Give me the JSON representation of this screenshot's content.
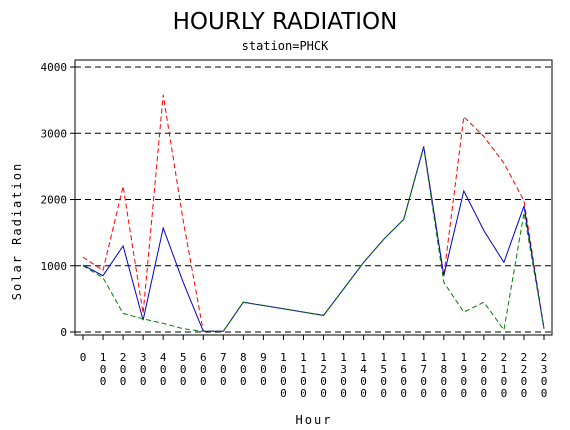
{
  "chart_data": {
    "type": "line",
    "title": "HOURLY RADIATION",
    "subtitle": "station=PHCK",
    "xlabel": "Hour",
    "ylabel": "Solar Radiation",
    "x": [
      "0",
      "100",
      "200",
      "300",
      "400",
      "500",
      "600",
      "700",
      "800",
      "900",
      "1000",
      "1100",
      "1200",
      "1300",
      "1400",
      "1500",
      "1600",
      "1700",
      "1800",
      "1900",
      "2000",
      "2100",
      "2200",
      "2300"
    ],
    "ylim": [
      0,
      4000
    ],
    "yticks": [
      0,
      1000,
      2000,
      3000,
      4000
    ],
    "ytick_labels": [
      "0",
      "1000",
      "2000",
      "3000",
      "4000"
    ],
    "grid": "horizontal dashed",
    "series": [
      {
        "color": "#ff0000",
        "style": "dashed",
        "values": [
          1130,
          930,
          2200,
          280,
          3580,
          1680,
          10,
          10,
          450,
          400,
          350,
          300,
          250,
          650,
          1050,
          1400,
          1700,
          2800,
          850,
          3250,
          2950,
          2550,
          1980,
          50
        ]
      },
      {
        "color": "#0000cc",
        "style": "solid",
        "values": [
          1010,
          850,
          1300,
          180,
          1570,
          750,
          10,
          10,
          450,
          400,
          350,
          300,
          250,
          650,
          1050,
          1400,
          1700,
          2800,
          850,
          2130,
          1530,
          1050,
          1900,
          50
        ]
      },
      {
        "color": "#008000",
        "style": "dashed",
        "values": [
          1000,
          820,
          280,
          200,
          130,
          50,
          10,
          10,
          450,
          400,
          350,
          300,
          250,
          650,
          1050,
          1400,
          1700,
          2780,
          750,
          300,
          450,
          30,
          1800,
          50
        ]
      }
    ]
  }
}
